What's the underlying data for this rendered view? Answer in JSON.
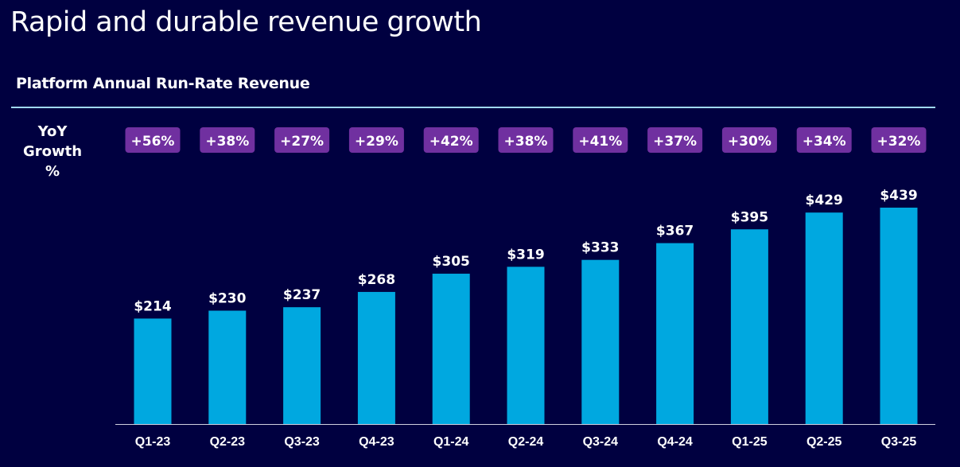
{
  "title": "Rapid and durable revenue growth",
  "colors": {
    "background": "#000040",
    "bar": "#00A8E0",
    "growth_pill": "#7030A0",
    "separator": "#9FD8F0",
    "text": "#FFFFFF"
  },
  "chart_data": {
    "type": "bar",
    "title": "Platform Annual Run-Rate Revenue",
    "xlabel": "",
    "ylabel": "",
    "grid": false,
    "categories": [
      "Q1-23",
      "Q2-23",
      "Q3-23",
      "Q4-23",
      "Q1-24",
      "Q2-24",
      "Q3-24",
      "Q4-24",
      "Q1-25",
      "Q2-25",
      "Q3-25"
    ],
    "values": [
      214,
      230,
      237,
      268,
      305,
      319,
      333,
      367,
      395,
      429,
      439
    ],
    "value_labels": [
      "$214",
      "$230",
      "$237",
      "$268",
      "$305",
      "$319",
      "$333",
      "$367",
      "$395",
      "$429",
      "$439"
    ],
    "ylim": [
      0,
      439
    ],
    "growth_row_label_line1": "YoY",
    "growth_row_label_line2": "Growth %",
    "yoy_growth": [
      "+56%",
      "+38%",
      "+27%",
      "+29%",
      "+42%",
      "+38%",
      "+41%",
      "+37%",
      "+30%",
      "+34%",
      "+32%"
    ]
  }
}
